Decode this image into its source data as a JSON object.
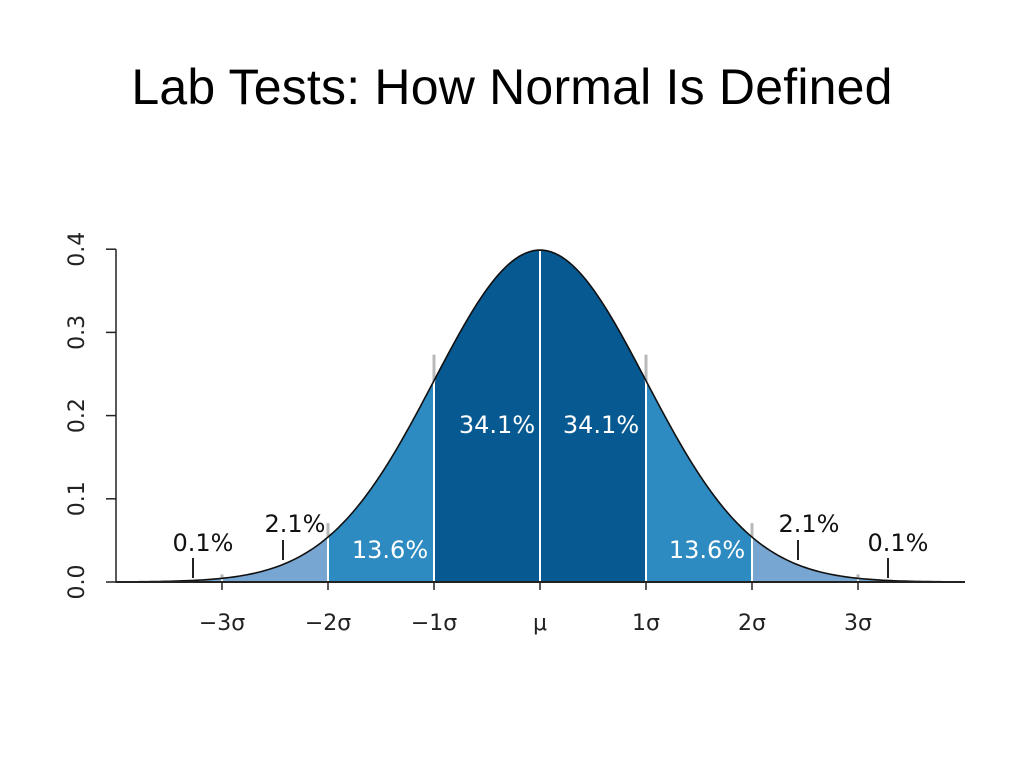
{
  "slide": {
    "title": "Lab Tests: How Normal Is Defined"
  },
  "chart_data": {
    "type": "area",
    "distribution": "standard normal density",
    "mean": 0,
    "sd": 1,
    "xlim": [
      -4,
      4
    ],
    "ylim": [
      0,
      0.4
    ],
    "y_ticks": [
      0.0,
      0.1,
      0.2,
      0.3,
      0.4
    ],
    "y_tick_labels": [
      "0.0",
      "0.1",
      "0.2",
      "0.3",
      "0.4"
    ],
    "x_ticks": [
      -3,
      -2,
      -1,
      0,
      1,
      2,
      3
    ],
    "x_tick_labels": [
      "−3σ",
      "−2σ",
      "−1σ",
      "μ",
      "1σ",
      "2σ",
      "3σ"
    ],
    "xlabel": "",
    "ylabel": "",
    "grid": false,
    "band_colors": {
      "outer": "#76a6d1",
      "middle": "#2e8bc2",
      "inner": "#075991",
      "curve": "#111111"
    },
    "bands": [
      {
        "from": -2,
        "to": -1,
        "label": "13.6%",
        "color_key": "middle"
      },
      {
        "from": -1,
        "to": 0,
        "label": "34.1%",
        "color_key": "inner"
      },
      {
        "from": 0,
        "to": 1,
        "label": "34.1%",
        "color_key": "inner"
      },
      {
        "from": 1,
        "to": 2,
        "label": "13.6%",
        "color_key": "middle"
      },
      {
        "from": -3,
        "to": -2,
        "label": "2.1%",
        "color_key": "outer"
      },
      {
        "from": 2,
        "to": 3,
        "label": "2.1%",
        "color_key": "outer"
      },
      {
        "from": -4,
        "to": -3,
        "label": "0.1%",
        "color_key": "outer"
      },
      {
        "from": 3,
        "to": 4,
        "label": "0.1%",
        "color_key": "outer"
      }
    ]
  }
}
